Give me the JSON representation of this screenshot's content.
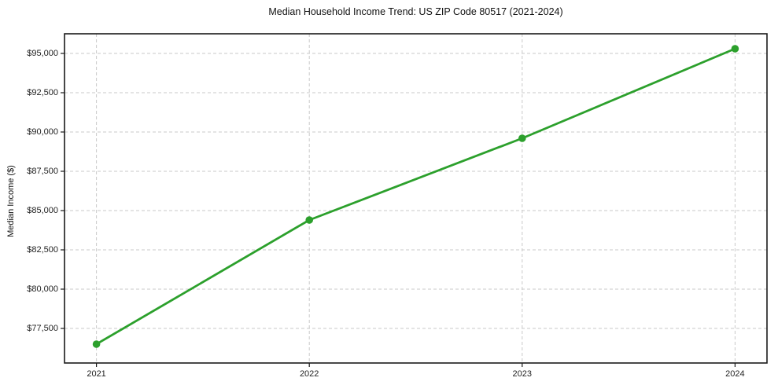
{
  "chart_data": {
    "type": "line",
    "title": "Median Household Income Trend: US ZIP Code 80517 (2021-2024)",
    "xlabel": "",
    "ylabel": "Median Income ($)",
    "x": [
      2021,
      2022,
      2023,
      2024
    ],
    "series": [
      {
        "name": "Median household income",
        "values": [
          76500,
          84400,
          89600,
          95300
        ]
      }
    ],
    "x_tick_labels": [
      "2021",
      "2022",
      "2023",
      "2024"
    ],
    "y_ticks": [
      77500,
      80000,
      82500,
      85000,
      87500,
      90000,
      92500,
      95000
    ],
    "y_tick_labels": [
      "$77,500",
      "$80,000",
      "$82,500",
      "$85,000",
      "$87,500",
      "$90,000",
      "$92,500",
      "$95,000"
    ],
    "xlim": [
      2020.85,
      2024.15
    ],
    "ylim": [
      75300,
      96250
    ],
    "grid": {
      "visible": true,
      "style": "dashed",
      "color": "#c9c9c9"
    },
    "legend": {
      "visible": false
    },
    "colors": {
      "line": "#2ca02c",
      "marker": "#2ca02c",
      "spine": "#1a1a1a",
      "tick": "#1a1a1a",
      "background": "#ffffff"
    }
  }
}
